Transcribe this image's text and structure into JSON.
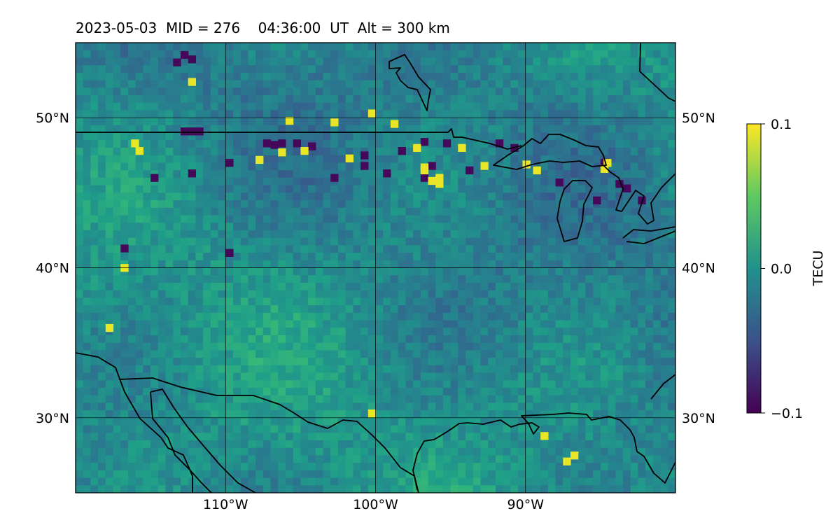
{
  "title": "2023-05-03  MID = 276    04:36:00  UT  Alt = 300 km",
  "map": {
    "lon_range": [
      -120,
      -80
    ],
    "lat_range": [
      25,
      55
    ],
    "lon_ticks": [
      {
        "value": -110,
        "label": "110°W"
      },
      {
        "value": -100,
        "label": "100°W"
      },
      {
        "value": -90,
        "label": "90°W"
      }
    ],
    "lat_ticks": [
      {
        "value": 50,
        "label": "50°N"
      },
      {
        "value": 40,
        "label": "40°N"
      },
      {
        "value": 30,
        "label": "30°N"
      }
    ],
    "gridlines": true,
    "colormap": "viridis"
  },
  "colorbar": {
    "label": "TECU",
    "range": [
      -0.1,
      0.1
    ],
    "ticks": [
      {
        "value": 0.1,
        "label": "0.1"
      },
      {
        "value": 0.0,
        "label": "0.0"
      },
      {
        "value": -0.1,
        "label": "−0.1"
      }
    ]
  },
  "anomalies": {
    "negative": [
      [
        -113,
        54.2
      ],
      [
        -113.5,
        53.7
      ],
      [
        -112.5,
        53.9
      ],
      [
        -112,
        49.1
      ],
      [
        -112.5,
        49.1
      ],
      [
        -113,
        49.1
      ],
      [
        -107.5,
        48.3
      ],
      [
        -107,
        48.2
      ],
      [
        -106.5,
        48.3
      ],
      [
        -105.5,
        48.3
      ],
      [
        -104.5,
        48.1
      ],
      [
        -98.5,
        47.8
      ],
      [
        -101,
        47.5
      ],
      [
        -101,
        46.8
      ],
      [
        -94,
        46.5
      ],
      [
        -96.5,
        46.8
      ],
      [
        -99.5,
        46.3
      ],
      [
        -110,
        47
      ],
      [
        -95.5,
        48.3
      ],
      [
        -97,
        48.4
      ],
      [
        -92,
        48.3
      ],
      [
        -91,
        48
      ],
      [
        -85,
        47
      ],
      [
        -84,
        45.6
      ],
      [
        -83.5,
        45.3
      ],
      [
        -115,
        46
      ],
      [
        -112.5,
        46.3
      ],
      [
        -103,
        46
      ],
      [
        -117,
        41.3
      ],
      [
        -110,
        41
      ],
      [
        -97,
        46
      ],
      [
        -88,
        45.7
      ],
      [
        -82.5,
        44.5
      ],
      [
        -85.5,
        44.5
      ]
    ],
    "positive": [
      [
        -106,
        49.8
      ],
      [
        -112.5,
        52.4
      ],
      [
        -100.5,
        50.3
      ],
      [
        -96,
        46
      ],
      [
        -96,
        45.6
      ],
      [
        -96.5,
        45.8
      ],
      [
        -97,
        46.5
      ],
      [
        -97,
        46.7
      ],
      [
        -99,
        49.6
      ],
      [
        -116.3,
        48.3
      ],
      [
        -116,
        47.8
      ],
      [
        -105,
        47.8
      ],
      [
        -106.5,
        47.7
      ],
      [
        -102,
        47.3
      ],
      [
        -97.5,
        48
      ],
      [
        -94.5,
        48
      ],
      [
        -90.2,
        46.9
      ],
      [
        -89.5,
        46.5
      ],
      [
        -85,
        46.6
      ],
      [
        -84.8,
        47
      ],
      [
        -117,
        40
      ],
      [
        -118,
        36
      ],
      [
        -87,
        27.5
      ],
      [
        -87.5,
        27.1
      ],
      [
        -89,
        28.8
      ],
      [
        -103,
        49.7
      ],
      [
        -93,
        46.8
      ],
      [
        -100.5,
        30.3
      ],
      [
        -108,
        47.2
      ]
    ]
  }
}
